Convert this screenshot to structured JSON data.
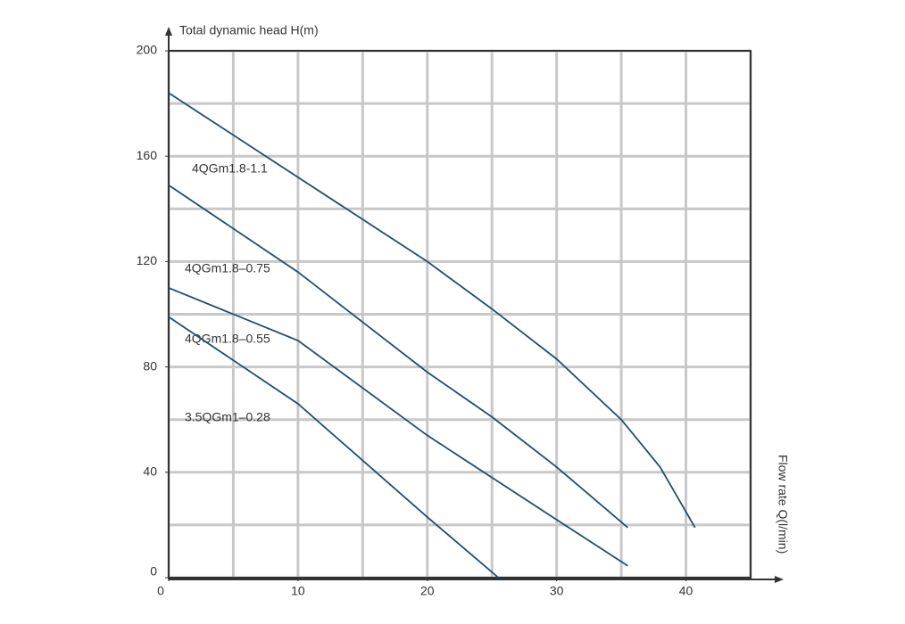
{
  "chart_data": {
    "type": "line",
    "y_label": "Total dynamic head H(m)",
    "x_label": "Flow rate Q(l/min)",
    "xlim": [
      0,
      45
    ],
    "ylim": [
      0,
      200
    ],
    "xticks": [
      0,
      10,
      20,
      30,
      40
    ],
    "yticks": [
      0,
      40,
      80,
      120,
      160,
      200
    ],
    "xgrid": [
      0,
      5,
      10,
      15,
      20,
      25,
      30,
      35,
      40,
      45
    ],
    "ygrid": [
      0,
      20,
      40,
      60,
      80,
      100,
      120,
      140,
      160,
      180,
      200
    ],
    "grid": true,
    "color": "#1f4e72",
    "series": [
      {
        "name": "4QGm1.8-1.1",
        "x": [
          0,
          10,
          20,
          25,
          30,
          35,
          38,
          40,
          40.7
        ],
        "values": [
          184,
          152,
          120,
          102,
          83,
          60,
          42,
          25,
          19
        ]
      },
      {
        "name": "4QGm1.8–0.75",
        "x": [
          0,
          10,
          20,
          25,
          30,
          35.5
        ],
        "values": [
          149,
          116,
          78,
          61,
          42,
          19
        ]
      },
      {
        "name": "4QGm1.8–0.55",
        "x": [
          0,
          10,
          20,
          30,
          35.5
        ],
        "values": [
          110,
          90,
          54,
          22,
          4.5
        ]
      },
      {
        "name": "3.5QGm1–0.28",
        "x": [
          0,
          10,
          20,
          25.5
        ],
        "values": [
          99,
          66,
          23,
          0
        ]
      }
    ]
  }
}
